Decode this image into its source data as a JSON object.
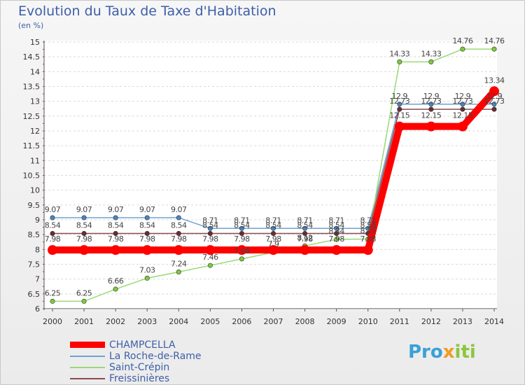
{
  "header": {
    "title": "Evolution du Taux de Taxe d'Habitation",
    "unit": "(en %)"
  },
  "logo": {
    "text": "Proxiti"
  },
  "chart_data": {
    "type": "line",
    "title": "Evolution du Taux de Taxe d'Habitation",
    "ylabel": "(en %)",
    "xlabel": "",
    "x": [
      2000,
      2001,
      2002,
      2003,
      2004,
      2005,
      2006,
      2007,
      2008,
      2009,
      2010,
      2011,
      2012,
      2013,
      2014
    ],
    "ylim": [
      6,
      15
    ],
    "ytick_step": 0.5,
    "yticks": [
      "6",
      "6.5",
      "7",
      "7.5",
      "8",
      "8.5",
      "9",
      "9.5",
      "10",
      "10.5",
      "11",
      "11.5",
      "12",
      "12.5",
      "13",
      "13.5",
      "14",
      "14.5",
      "15"
    ],
    "legend_position": "bottom-left",
    "series": [
      {
        "name": "La Roche-de-Rame",
        "color": "#6fa3cf",
        "marker": "#4a86c0",
        "values": [
          9.07,
          9.07,
          9.07,
          9.07,
          9.07,
          8.71,
          8.71,
          8.71,
          8.71,
          8.71,
          8.71,
          12.9,
          12.9,
          12.9,
          12.9
        ],
        "labels": [
          "9.07",
          "9.07",
          "9.07",
          "9.07",
          "9.07",
          "8.71",
          "8.71",
          "8.71",
          "8.71",
          "8.71",
          "8.71",
          "12.9",
          "12.9",
          "12.9",
          "12.9"
        ]
      },
      {
        "name": "Saint-Crépin",
        "color": "#99d975",
        "marker": "#7ccd3c",
        "values": [
          6.25,
          6.25,
          6.66,
          7.03,
          7.24,
          7.46,
          7.68,
          7.9,
          8.12,
          8.34,
          8.35,
          14.33,
          14.33,
          14.76,
          14.76
        ],
        "labels": [
          "6.25",
          "6.25",
          "6.66",
          "7.03",
          "7.24",
          "7.46",
          "7.68",
          "7.9",
          "8.12",
          "8.34",
          "8.35",
          "14.33",
          "14.33",
          "14.76",
          "14.76"
        ]
      },
      {
        "name": "Freissinières",
        "color": "#8a4a52",
        "marker": "#6e2a33",
        "values": [
          8.54,
          8.54,
          8.54,
          8.54,
          8.54,
          8.54,
          8.54,
          8.54,
          8.54,
          8.54,
          8.54,
          12.73,
          12.73,
          12.73,
          12.73
        ],
        "labels": [
          "8.54",
          "8.54",
          "8.54",
          "8.54",
          "8.54",
          "8.54",
          "8.54",
          "8.54",
          "8.54",
          "8.54",
          "8.54",
          "12.73",
          "12.73",
          "12.73",
          "12.73"
        ]
      },
      {
        "name": "CHAMPCELLA",
        "color": "#ff0000",
        "marker": "#ff0000",
        "thick": true,
        "values": [
          7.98,
          7.98,
          7.98,
          7.98,
          7.98,
          7.98,
          7.98,
          7.98,
          7.98,
          7.98,
          7.98,
          12.15,
          12.15,
          12.15,
          13.34
        ],
        "labels": [
          "7.98",
          "7.98",
          "7.98",
          "7.98",
          "7.98",
          "7.98",
          "7.98",
          "7.98",
          "7.98",
          "7.98",
          "7.98",
          "12.15",
          "12.15",
          "12.15",
          "13.34"
        ]
      }
    ],
    "legend": [
      {
        "name": "CHAMPCELLA",
        "color": "#ff0000",
        "thick": true
      },
      {
        "name": "La Roche-de-Rame",
        "color": "#6fa3cf",
        "thick": false
      },
      {
        "name": "Saint-Crépin",
        "color": "#99d975",
        "thick": false
      },
      {
        "name": "Freissinières",
        "color": "#8a4a52",
        "thick": false
      }
    ]
  }
}
